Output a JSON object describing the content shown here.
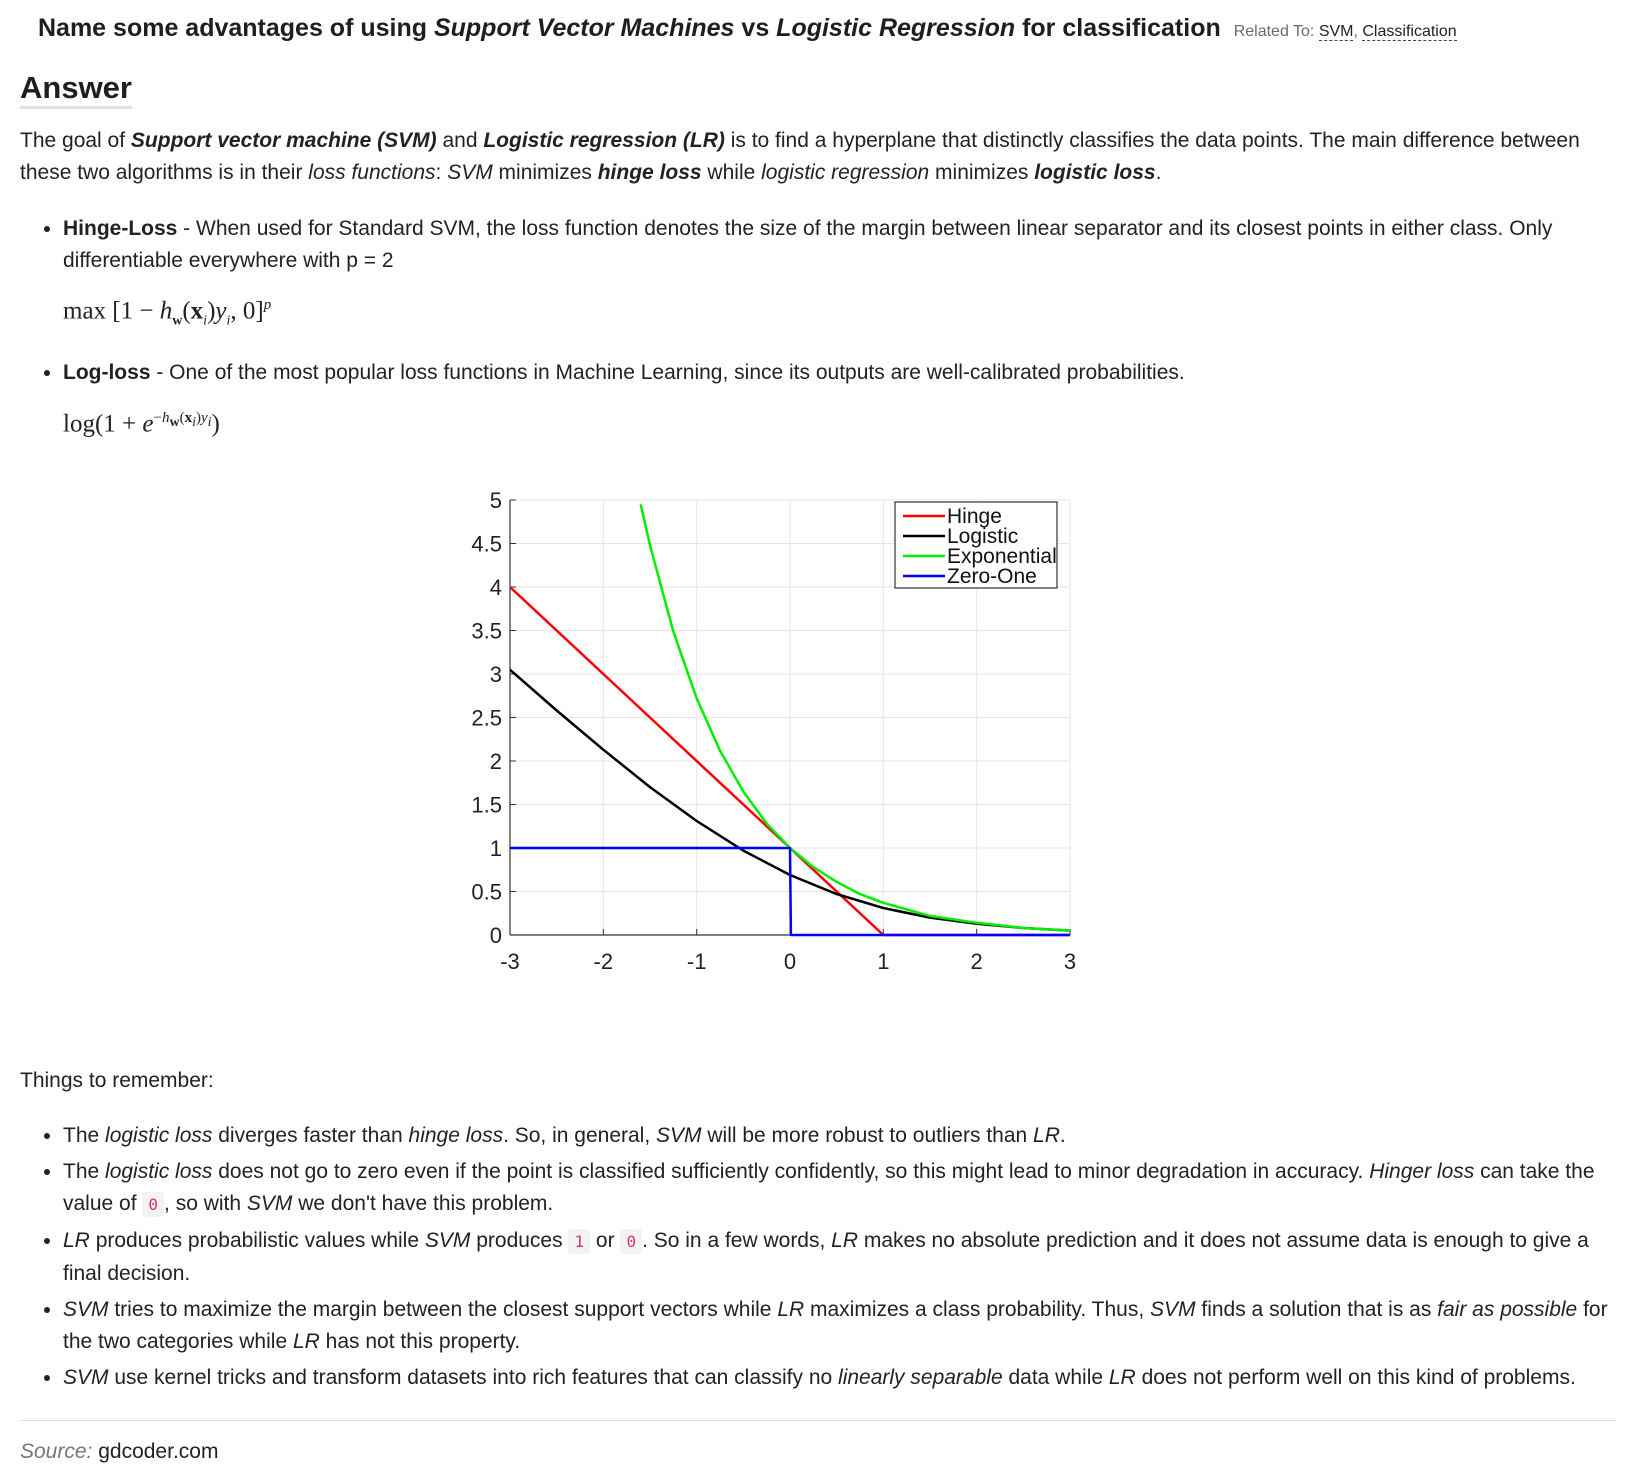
{
  "question": {
    "prefix": "Name some advantages of using ",
    "term1": "Support Vector Machines",
    "mid": " vs ",
    "term2": "Logistic Regression",
    "suffix": " for classification",
    "related_label": "Related To:",
    "tags": [
      "SVM",
      "Classification"
    ]
  },
  "answer_heading": "Answer",
  "intro": {
    "p1": "The goal of ",
    "svm_name": "Support vector machine (SVM)",
    "p2": " and ",
    "lr_name": "Logistic regression (LR)",
    "p3": " is to find a hyperplane that distinctly classifies the data points. The main difference between these two algorithms is in their ",
    "loss_functions": "loss functions",
    "p4": ": ",
    "svm": "SVM",
    "p5": " minimizes ",
    "hinge_loss": "hinge loss",
    "p6": " while ",
    "logistic_regression": "logistic regression",
    "p7": " minimizes ",
    "logistic_loss": "logistic loss",
    "p8": "."
  },
  "hinge": {
    "title": "Hinge-Loss",
    "text": " - When used for Standard SVM, the loss function denotes the size of the margin between linear separator and its closest points in either class. Only differentiable everywhere with p = 2"
  },
  "logloss": {
    "title": "Log-loss",
    "text": " - One of the most popular loss functions in Machine Learning, since its outputs are well-calibrated probabilities."
  },
  "chart_data": {
    "type": "line",
    "title": "",
    "xlabel": "",
    "ylabel": "",
    "xlim": [
      -3,
      3
    ],
    "ylim": [
      0,
      5
    ],
    "x_ticks": [
      "-3",
      "-2",
      "-1",
      "0",
      "1",
      "2",
      "3"
    ],
    "y_ticks": [
      "0",
      "0.5",
      "1",
      "1.5",
      "2",
      "2.5",
      "3",
      "3.5",
      "4",
      "4.5",
      "5"
    ],
    "grid": true,
    "legend_position": "top-right",
    "series": [
      {
        "name": "Hinge",
        "color": "#ff0000",
        "x": [
          -3,
          1,
          3
        ],
        "y": [
          4,
          0,
          0
        ]
      },
      {
        "name": "Logistic",
        "color": "#000000",
        "x": [
          -3,
          -2.5,
          -2,
          -1.5,
          -1,
          -0.5,
          0,
          0.5,
          1,
          1.5,
          2,
          2.5,
          3
        ],
        "y": [
          3.05,
          2.58,
          2.13,
          1.7,
          1.31,
          0.97,
          0.69,
          0.47,
          0.31,
          0.2,
          0.13,
          0.08,
          0.05
        ]
      },
      {
        "name": "Exponential",
        "color": "#00ee00",
        "x": [
          -1.6,
          -1.5,
          -1.25,
          -1,
          -0.75,
          -0.5,
          -0.25,
          0,
          0.25,
          0.5,
          0.75,
          1,
          1.5,
          2,
          2.5,
          3
        ],
        "y": [
          4.95,
          4.48,
          3.49,
          2.72,
          2.12,
          1.65,
          1.28,
          1,
          0.78,
          0.61,
          0.47,
          0.37,
          0.22,
          0.14,
          0.08,
          0.05
        ]
      },
      {
        "name": "Zero-One",
        "color": "#0000ff",
        "x": [
          -3,
          0,
          0.01,
          3
        ],
        "y": [
          1,
          1,
          0,
          0
        ]
      }
    ]
  },
  "remember": {
    "heading": "Things to remember:",
    "item1": {
      "a": "The ",
      "logistic_loss": "logistic loss",
      "b": " diverges faster than ",
      "hinge_loss": "hinge loss",
      "c": ". So, in general, ",
      "svm": "SVM",
      "d": " will be more robust to outliers than ",
      "lr": "LR",
      "e": "."
    },
    "item2": {
      "a": "The ",
      "logistic_loss": "logistic loss",
      "b": " does not go to zero even if the point is classified sufficiently confidently, so this might lead to minor degradation in accuracy. ",
      "hinger_loss": "Hinger loss",
      "c": " can take the value of ",
      "zero": "0",
      "d": ", so with ",
      "svm": "SVM",
      "e": " we don't have this problem."
    },
    "item3": {
      "lr": "LR",
      "a": " produces probabilistic values while ",
      "svm": "SVM",
      "b": " produces ",
      "one": "1",
      "c": " or ",
      "zero": "0",
      "d": ". So in a few words, ",
      "lr2": "LR",
      "e": " makes no absolute prediction and it does not assume data is enough to give a final decision."
    },
    "item4": {
      "svm": "SVM",
      "a": " tries to maximize the margin between the closest support vectors while ",
      "lr": "LR",
      "b": " maximizes a class probability. Thus, ",
      "svm2": "SVM",
      "c": " finds a solution that is as ",
      "fair": "fair as possible",
      "d": " for the two categories while ",
      "lr2": "LR",
      "e": " has not this property."
    },
    "item5": {
      "svm": "SVM",
      "a": " use kernel tricks and transform datasets into rich features that can classify no ",
      "linsep": "linearly separable",
      "b": " data while ",
      "lr": "LR",
      "c": " does not perform well on this kind of problems."
    }
  },
  "source": {
    "label": "Source:",
    "site": "gdcoder.com"
  }
}
